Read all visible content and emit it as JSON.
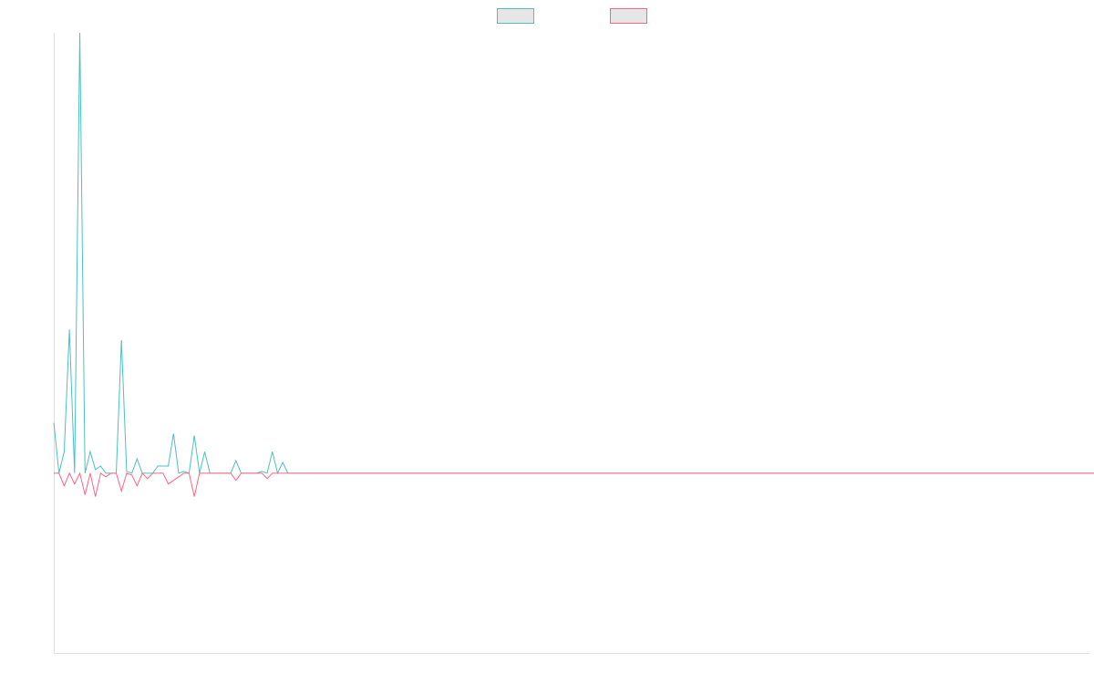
{
  "chart_data": {
    "type": "line",
    "title": "",
    "xlabel": "",
    "ylabel": "",
    "grid": false,
    "legend_position": "top-center",
    "xlim": [
      0,
      199
    ],
    "ylim": [
      -100,
      245
    ],
    "series": [
      {
        "color": "#4bc0c0",
        "fill": "#e6e6e6",
        "values": [
          28,
          0,
          12,
          80,
          0,
          245,
          0,
          12,
          2,
          4,
          0,
          0,
          0,
          74,
          1,
          0,
          8,
          0,
          0,
          0,
          4,
          4,
          4,
          22,
          0,
          1,
          0,
          21,
          0,
          12,
          0,
          0,
          0,
          0,
          0,
          7,
          0,
          0,
          0,
          0,
          1,
          0,
          12,
          0,
          6,
          0,
          0,
          0,
          0,
          0,
          0,
          0,
          0,
          0,
          0,
          0,
          0,
          0,
          0,
          0,
          0,
          0,
          0,
          0,
          0,
          0,
          0,
          0,
          0,
          0,
          0,
          0,
          0,
          0,
          0,
          0,
          0,
          0,
          0,
          0,
          0,
          0,
          0,
          0,
          0,
          0,
          0,
          0,
          0,
          0,
          0,
          0,
          0,
          0,
          0,
          0,
          0,
          0,
          0,
          0,
          0,
          0,
          0,
          0,
          0,
          0,
          0,
          0,
          0,
          0,
          0,
          0,
          0,
          0,
          0,
          0,
          0,
          0,
          0,
          0,
          0,
          0,
          0,
          0,
          0,
          0,
          0,
          0,
          0,
          0,
          0,
          0,
          0,
          0,
          0,
          0,
          0,
          0,
          0,
          0,
          0,
          0,
          0,
          0,
          0,
          0,
          0,
          0,
          0,
          0,
          0,
          0,
          0,
          0,
          0,
          0,
          0,
          0,
          0,
          0,
          0,
          0,
          0,
          0,
          0,
          0,
          0,
          0,
          0,
          0,
          0,
          0,
          0,
          0,
          0,
          0,
          0,
          0,
          0,
          0,
          0,
          0,
          0,
          0,
          0,
          0,
          0,
          0,
          0,
          0,
          0,
          0,
          0,
          0,
          0,
          0,
          0,
          0,
          0,
          0,
          0,
          0,
          0,
          0
        ]
      },
      {
        "color": "#ff6384",
        "fill": "#e6e6e6",
        "values": [
          0,
          0,
          -7,
          0,
          -6,
          0,
          -12,
          0,
          -13,
          0,
          -2,
          0,
          0,
          -10,
          0,
          -1,
          -7,
          0,
          -3,
          0,
          0,
          0,
          -6,
          -4,
          -2,
          0,
          0,
          -13,
          0,
          0,
          0,
          0,
          0,
          0,
          0,
          -4,
          0,
          0,
          0,
          0,
          0,
          -3,
          0,
          0,
          0,
          0,
          0,
          0,
          0,
          0,
          0,
          0,
          0,
          0,
          0,
          0,
          0,
          0,
          0,
          0,
          0,
          0,
          0,
          0,
          0,
          0,
          0,
          0,
          0,
          0,
          0,
          0,
          0,
          0,
          0,
          0,
          0,
          0,
          0,
          0,
          0,
          0,
          0,
          0,
          0,
          0,
          0,
          0,
          0,
          0,
          0,
          0,
          0,
          0,
          0,
          0,
          0,
          0,
          0,
          0,
          0,
          0,
          0,
          0,
          0,
          0,
          0,
          0,
          0,
          0,
          0,
          0,
          0,
          0,
          0,
          0,
          0,
          0,
          0,
          0,
          0,
          0,
          0,
          0,
          0,
          0,
          0,
          0,
          0,
          0,
          0,
          0,
          0,
          0,
          0,
          0,
          0,
          0,
          0,
          0,
          0,
          0,
          0,
          0,
          0,
          0,
          0,
          0,
          0,
          0,
          0,
          0,
          0,
          0,
          0,
          0,
          0,
          0,
          0,
          0,
          0,
          0,
          0,
          0,
          0,
          0,
          0,
          0,
          0,
          0,
          0,
          0,
          0,
          0,
          0,
          0,
          0,
          0,
          0,
          0,
          0,
          0,
          0,
          0,
          0,
          0,
          0,
          0,
          0,
          0,
          0,
          0,
          0,
          0,
          0,
          0,
          0,
          0,
          0,
          0,
          0,
          0,
          0,
          0,
          0,
          0,
          0,
          0
        ]
      }
    ]
  }
}
